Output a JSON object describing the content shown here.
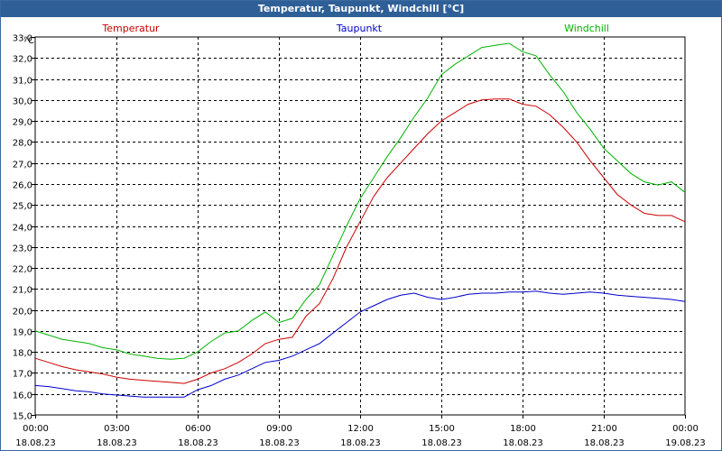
{
  "window": {
    "title": "Temperatur, Taupunkt, Windchill [°C]"
  },
  "chart_data": {
    "type": "line",
    "title": "Temperatur, Taupunkt, Windchill [°C]",
    "ylabel": "°C",
    "ylim": [
      15.0,
      33.0
    ],
    "ytick_step": 1.0,
    "ytick_labels": [
      "15,0",
      "16,0",
      "17,0",
      "18,0",
      "19,0",
      "20,0",
      "21,0",
      "22,0",
      "23,0",
      "24,0",
      "25,0",
      "26,0",
      "27,0",
      "28,0",
      "29,0",
      "30,0",
      "31,0",
      "32,0",
      "33,0"
    ],
    "xlim": [
      0,
      24
    ],
    "xticks": [
      {
        "hour": 0,
        "time": "00:00",
        "date": "18.08.23"
      },
      {
        "hour": 3,
        "time": "03:00",
        "date": "18.08.23"
      },
      {
        "hour": 6,
        "time": "06:00",
        "date": "18.08.23"
      },
      {
        "hour": 9,
        "time": "09:00",
        "date": "18.08.23"
      },
      {
        "hour": 12,
        "time": "12:00",
        "date": "18.08.23"
      },
      {
        "hour": 15,
        "time": "15:00",
        "date": "18.08.23"
      },
      {
        "hour": 18,
        "time": "18:00",
        "date": "18.08.23"
      },
      {
        "hour": 21,
        "time": "21:00",
        "date": "18.08.23"
      },
      {
        "hour": 24,
        "time": "00:00",
        "date": "19.08.23"
      }
    ],
    "grid": true,
    "series": [
      {
        "name": "Temperatur",
        "color": "#cc0000",
        "x": [
          0,
          0.5,
          1,
          1.5,
          2,
          2.5,
          3,
          3.5,
          4,
          4.5,
          5,
          5.5,
          6,
          6.5,
          7,
          7.5,
          8,
          8.5,
          9,
          9.5,
          10,
          10.5,
          11,
          11.5,
          12,
          12.5,
          13,
          13.5,
          14,
          14.5,
          15,
          15.5,
          16,
          16.5,
          17,
          17.5,
          18,
          18.5,
          19,
          19.5,
          20,
          20.5,
          21,
          21.5,
          22,
          22.5,
          23,
          23.5,
          24
        ],
        "values": [
          17.7,
          17.5,
          17.3,
          17.15,
          17.05,
          16.95,
          16.8,
          16.7,
          16.65,
          16.6,
          16.55,
          16.5,
          16.7,
          17.0,
          17.2,
          17.5,
          17.9,
          18.4,
          18.6,
          18.7,
          19.7,
          20.3,
          21.5,
          23.0,
          24.2,
          25.4,
          26.3,
          27.0,
          27.7,
          28.4,
          29.0,
          29.4,
          29.8,
          30.0,
          30.05,
          30.05,
          29.8,
          29.7,
          29.3,
          28.7,
          28.0,
          27.1,
          26.3,
          25.5,
          25.0,
          24.6,
          24.5,
          24.5,
          24.2
        ]
      },
      {
        "name": "Taupunkt",
        "color": "#0000cc",
        "x": [
          0,
          0.5,
          1,
          1.5,
          2,
          2.5,
          3,
          3.5,
          4,
          4.5,
          5,
          5.5,
          6,
          6.5,
          7,
          7.5,
          8,
          8.5,
          9,
          9.5,
          10,
          10.5,
          11,
          11.5,
          12,
          12.5,
          13,
          13.5,
          14,
          14.5,
          15,
          15.5,
          16,
          16.5,
          17,
          17.5,
          18,
          18.5,
          19,
          19.5,
          20,
          20.5,
          21,
          21.5,
          22,
          22.5,
          23,
          23.5,
          24
        ],
        "values": [
          16.4,
          16.35,
          16.25,
          16.15,
          16.1,
          16.0,
          15.95,
          15.9,
          15.85,
          15.85,
          15.85,
          15.85,
          16.2,
          16.4,
          16.7,
          16.9,
          17.2,
          17.5,
          17.6,
          17.8,
          18.1,
          18.4,
          18.9,
          19.4,
          19.9,
          20.2,
          20.5,
          20.7,
          20.8,
          20.6,
          20.5,
          20.6,
          20.75,
          20.8,
          20.8,
          20.85,
          20.85,
          20.9,
          20.8,
          20.75,
          20.8,
          20.85,
          20.8,
          20.7,
          20.65,
          20.6,
          20.55,
          20.5,
          20.4
        ]
      },
      {
        "name": "Windchill",
        "color": "#00b400",
        "x": [
          0,
          0.5,
          1,
          1.5,
          2,
          2.5,
          3,
          3.5,
          4,
          4.5,
          5,
          5.5,
          6,
          6.5,
          7,
          7.5,
          8,
          8.5,
          9,
          9.5,
          10,
          10.5,
          11,
          11.5,
          12,
          12.5,
          13,
          13.5,
          14,
          14.5,
          15,
          15.5,
          16,
          16.5,
          17,
          17.5,
          18,
          18.5,
          19,
          19.5,
          20,
          20.5,
          21,
          21.5,
          22,
          22.5,
          23,
          23.5,
          24
        ],
        "values": [
          19.0,
          18.8,
          18.6,
          18.5,
          18.4,
          18.2,
          18.1,
          17.9,
          17.8,
          17.7,
          17.65,
          17.7,
          18.0,
          18.5,
          18.9,
          19.0,
          19.5,
          19.9,
          19.4,
          19.6,
          20.5,
          21.2,
          22.6,
          24.0,
          25.3,
          26.3,
          27.3,
          28.2,
          29.2,
          30.1,
          31.2,
          31.7,
          32.1,
          32.5,
          32.6,
          32.7,
          32.3,
          32.1,
          31.2,
          30.4,
          29.4,
          28.6,
          27.7,
          27.1,
          26.5,
          26.1,
          25.95,
          26.1,
          25.6
        ]
      }
    ]
  }
}
